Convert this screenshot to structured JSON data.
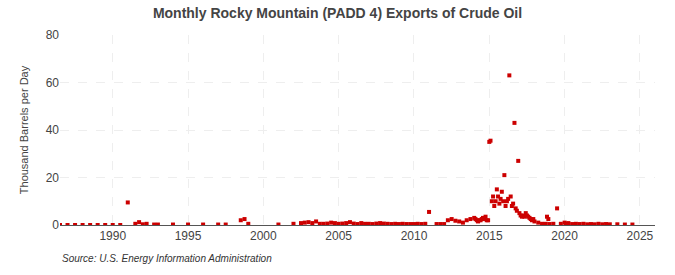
{
  "chart_data": {
    "type": "scatter",
    "title": "Monthly Rocky Mountain (PADD 4) Exports of Crude Oil",
    "ylabel": "Thousand Barrels per Day",
    "annotations": [
      "Source: U.S. Energy Information Administration"
    ],
    "color": "#cc0000",
    "marker": "square",
    "grid": true,
    "xlim": [
      1986.5,
      2026
    ],
    "xticks": [
      1990,
      1995,
      2000,
      2005,
      2010,
      2015,
      2020,
      2025
    ],
    "ylim": [
      0,
      80
    ],
    "yticks": [
      0,
      20,
      40,
      60,
      80
    ],
    "x": [
      1986.5,
      1987.0,
      1987.5,
      1988.0,
      1988.5,
      1989.0,
      1989.5,
      1990.0,
      1990.5,
      1991.0,
      1991.5,
      1991.75,
      1992.0,
      1992.25,
      1992.75,
      1993.0,
      1994.0,
      1995.0,
      1996.0,
      1997.0,
      1997.5,
      1998.5,
      1998.75,
      1999.0,
      2001.0,
      2002.0,
      2002.5,
      2002.75,
      2003.0,
      2003.25,
      2003.5,
      2003.75,
      2004.0,
      2004.25,
      2004.5,
      2004.75,
      2005.0,
      2005.25,
      2005.5,
      2005.75,
      2006.0,
      2006.25,
      2006.5,
      2006.75,
      2007.0,
      2007.25,
      2007.5,
      2007.75,
      2008.0,
      2008.25,
      2008.5,
      2008.75,
      2009.0,
      2009.25,
      2009.5,
      2009.75,
      2010.0,
      2010.25,
      2010.5,
      2010.75,
      2011.0,
      2011.5,
      2011.75,
      2012.0,
      2012.25,
      2012.5,
      2012.75,
      2013.0,
      2013.25,
      2013.5,
      2013.75,
      2014.0,
      2014.08,
      2014.17,
      2014.25,
      2014.33,
      2014.42,
      2014.5,
      2014.58,
      2014.67,
      2014.75,
      2014.83,
      2014.92,
      2015.0,
      2015.08,
      2015.17,
      2015.25,
      2015.33,
      2015.42,
      2015.5,
      2015.58,
      2015.67,
      2015.75,
      2015.83,
      2015.92,
      2016.0,
      2016.08,
      2016.17,
      2016.25,
      2016.33,
      2016.42,
      2016.5,
      2016.58,
      2016.67,
      2016.75,
      2016.83,
      2016.92,
      2017.0,
      2017.08,
      2017.17,
      2017.25,
      2017.33,
      2017.42,
      2017.5,
      2017.58,
      2017.67,
      2017.75,
      2017.83,
      2017.92,
      2018.0,
      2018.25,
      2018.5,
      2018.75,
      2018.83,
      2018.92,
      2019.0,
      2019.25,
      2019.5,
      2019.75,
      2020.0,
      2020.08,
      2020.25,
      2020.5,
      2020.75,
      2021.0,
      2021.25,
      2021.5,
      2021.75,
      2022.0,
      2022.25,
      2022.5,
      2022.75,
      2023.0,
      2023.5,
      2024.0,
      2024.5
    ],
    "values": [
      0,
      0,
      0,
      0,
      0,
      0,
      0,
      0,
      0,
      9.5,
      0.5,
      1.2,
      0.3,
      0.5,
      0.2,
      0.2,
      0.2,
      0.2,
      0.2,
      0.2,
      0.2,
      2.0,
      2.5,
      0.5,
      0.2,
      0.5,
      0.8,
      1.0,
      1.2,
      0.8,
      1.5,
      0.5,
      0.5,
      0.6,
      1.0,
      0.8,
      0.5,
      0.6,
      0.8,
      1.2,
      0.6,
      0.4,
      0.8,
      0.5,
      0.5,
      0.4,
      0.6,
      0.8,
      0.6,
      0.5,
      0.4,
      0.5,
      0.4,
      0.5,
      0.4,
      0.4,
      0.4,
      0.5,
      0.4,
      0.5,
      5.5,
      0.4,
      0.4,
      0.4,
      2.0,
      2.5,
      1.8,
      1.5,
      1.0,
      2.0,
      2.5,
      3.0,
      2.5,
      2.0,
      1.5,
      2.0,
      2.0,
      2.5,
      3.0,
      2.5,
      3.5,
      2.0,
      2.0,
      35.0,
      35.5,
      10.0,
      12.0,
      8.0,
      10.0,
      15.0,
      12.0,
      9.0,
      11.0,
      14.0,
      10.0,
      21.0,
      8.0,
      10.0,
      11.0,
      63.0,
      12.0,
      8.0,
      9.0,
      43.0,
      7.0,
      6.0,
      27.0,
      5.0,
      4.0,
      3.5,
      4.0,
      3.5,
      5.0,
      4.0,
      3.5,
      3.0,
      2.5,
      2.0,
      2.5,
      1.5,
      1.0,
      0.5,
      0.5,
      3.5,
      2.5,
      0.4,
      0.5,
      7.0,
      0.5,
      1.0,
      0.5,
      0.8,
      0.4,
      0.5,
      0.4,
      0.5,
      0.3,
      0.4,
      0.3,
      0.5,
      0.3,
      0.4,
      0.3,
      0.3,
      0.2,
      0.2
    ]
  }
}
